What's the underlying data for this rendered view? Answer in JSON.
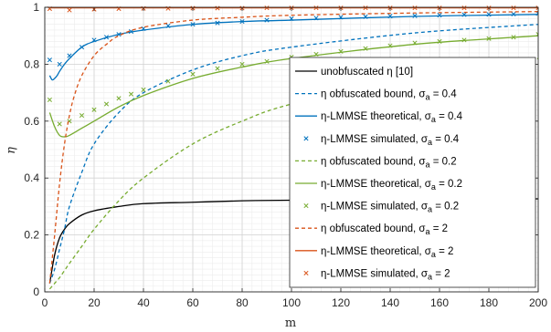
{
  "chart_data": {
    "type": "line",
    "xlabel": "m",
    "ylabel": "η",
    "xlim": [
      0,
      200
    ],
    "ylim": [
      0,
      1
    ],
    "xticks": [
      "0",
      "20",
      "40",
      "60",
      "80",
      "100",
      "120",
      "140",
      "160",
      "180",
      "200"
    ],
    "yticks": [
      "0",
      "0.2",
      "0.4",
      "0.6",
      "0.8",
      "1"
    ],
    "grid": "major and minor",
    "legend_position": "right",
    "colors": {
      "blue": "#0072BD",
      "green": "#77AC30",
      "orange": "#D95319",
      "black": "#000000"
    },
    "series": [
      {
        "name": "unobfuscated η [10]",
        "legend_label": "unobfuscated η [10]",
        "color": "#000000",
        "style": "solid",
        "x": [
          2,
          4,
          6,
          8,
          10,
          15,
          20,
          30,
          40,
          60,
          80,
          100,
          150,
          200
        ],
        "y": [
          0.03,
          0.13,
          0.19,
          0.22,
          0.24,
          0.27,
          0.285,
          0.3,
          0.31,
          0.315,
          0.32,
          0.322,
          0.325,
          0.327
        ]
      },
      {
        "name": "η obfuscated bound, σa = 0.4",
        "legend_label": "η obfuscated bound, σ",
        "legend_sub": "a",
        "legend_tail": " = 0.4",
        "color": "#0072BD",
        "style": "dashed",
        "x": [
          2,
          4,
          6,
          8,
          10,
          15,
          20,
          30,
          40,
          60,
          80,
          100,
          150,
          200
        ],
        "y": [
          0.03,
          0.08,
          0.15,
          0.22,
          0.3,
          0.42,
          0.52,
          0.63,
          0.7,
          0.78,
          0.83,
          0.86,
          0.91,
          0.94
        ]
      },
      {
        "name": "η-LMMSE theoretical, σa = 0.4",
        "legend_label": "η-LMMSE theoretical, σ",
        "legend_sub": "a",
        "legend_tail": " = 0.4",
        "color": "#0072BD",
        "style": "solid",
        "x": [
          2,
          3,
          4,
          5,
          6,
          8,
          10,
          15,
          20,
          30,
          40,
          60,
          80,
          100,
          150,
          200
        ],
        "y": [
          0.76,
          0.745,
          0.75,
          0.76,
          0.775,
          0.8,
          0.82,
          0.86,
          0.88,
          0.905,
          0.92,
          0.94,
          0.95,
          0.955,
          0.968,
          0.975
        ]
      },
      {
        "name": "η-LMMSE simulated, σa = 0.4",
        "legend_label": "η-LMMSE simulated, σ",
        "legend_sub": "a",
        "legend_tail": " = 0.4",
        "color": "#0072BD",
        "style": "marker-x",
        "x": [
          2,
          6,
          10,
          15,
          20,
          25,
          30,
          35,
          40,
          50,
          60,
          70,
          80,
          90,
          100,
          110,
          120,
          130,
          140,
          150,
          160,
          170,
          180,
          190,
          200
        ],
        "y": [
          0.815,
          0.8,
          0.83,
          0.86,
          0.885,
          0.895,
          0.905,
          0.915,
          0.925,
          0.935,
          0.94,
          0.945,
          0.95,
          0.955,
          0.96,
          0.962,
          0.965,
          0.967,
          0.969,
          0.97,
          0.972,
          0.974,
          0.975,
          0.976,
          0.978
        ]
      },
      {
        "name": "η obfuscated bound, σa = 0.2",
        "legend_label": "η obfuscated bound, σ",
        "legend_sub": "a",
        "legend_tail": " = 0.2",
        "color": "#77AC30",
        "style": "dashed",
        "x": [
          2,
          4,
          6,
          8,
          10,
          15,
          20,
          30,
          40,
          60,
          80,
          100,
          150,
          200
        ],
        "y": [
          0.01,
          0.03,
          0.05,
          0.075,
          0.1,
          0.16,
          0.22,
          0.32,
          0.4,
          0.52,
          0.6,
          0.66,
          0.76,
          0.82
        ]
      },
      {
        "name": "η-LMMSE theoretical, σa = 0.2",
        "legend_label": "η-LMMSE theoretical, σ",
        "legend_sub": "a",
        "legend_tail": " = 0.2",
        "color": "#77AC30",
        "style": "solid",
        "x": [
          2,
          4,
          6,
          8,
          10,
          15,
          20,
          30,
          40,
          60,
          80,
          100,
          150,
          200
        ],
        "y": [
          0.63,
          0.58,
          0.55,
          0.545,
          0.55,
          0.575,
          0.6,
          0.65,
          0.69,
          0.75,
          0.79,
          0.82,
          0.87,
          0.9
        ]
      },
      {
        "name": "η-LMMSE simulated, σa = 0.2",
        "legend_label": "η-LMMSE simulated, σ",
        "legend_sub": "a",
        "legend_tail": " = 0.2",
        "color": "#77AC30",
        "style": "marker-x",
        "x": [
          2,
          6,
          10,
          15,
          20,
          25,
          30,
          35,
          40,
          50,
          60,
          70,
          80,
          90,
          100,
          110,
          120,
          130,
          140,
          150,
          160,
          170,
          180,
          190,
          200
        ],
        "y": [
          0.675,
          0.59,
          0.6,
          0.62,
          0.64,
          0.66,
          0.68,
          0.695,
          0.71,
          0.74,
          0.765,
          0.785,
          0.8,
          0.81,
          0.825,
          0.835,
          0.845,
          0.855,
          0.865,
          0.875,
          0.88,
          0.885,
          0.89,
          0.895,
          0.905
        ]
      },
      {
        "name": "η obfuscated bound, σa = 2",
        "legend_label": "η obfuscated bound, σ",
        "legend_sub": "a",
        "legend_tail": " = 2",
        "color": "#D95319",
        "style": "dashed",
        "x": [
          2,
          4,
          6,
          8,
          10,
          12,
          15,
          20,
          25,
          30,
          40,
          60,
          80,
          100,
          150,
          200
        ],
        "y": [
          0.03,
          0.2,
          0.38,
          0.52,
          0.62,
          0.69,
          0.76,
          0.83,
          0.87,
          0.9,
          0.93,
          0.955,
          0.965,
          0.972,
          0.98,
          0.985
        ]
      },
      {
        "name": "η-LMMSE theoretical, σa = 2",
        "legend_label": "η-LMMSE theoretical, σ",
        "legend_sub": "a",
        "legend_tail": " = 2",
        "color": "#D95319",
        "style": "solid",
        "x": [
          2,
          50,
          100,
          150,
          200
        ],
        "y": [
          0.998,
          0.998,
          0.998,
          0.998,
          0.998
        ]
      },
      {
        "name": "η-LMMSE simulated, σa = 2",
        "legend_label": "η-LMMSE simulated, σ",
        "legend_sub": "a",
        "legend_tail": " = 2",
        "color": "#D95319",
        "style": "marker-x",
        "x": [
          2,
          10,
          20,
          30,
          40,
          50,
          60,
          70,
          80,
          90,
          100,
          110,
          120,
          130,
          140,
          150,
          160,
          170,
          180,
          190,
          200
        ],
        "y": [
          0.995,
          0.99,
          0.993,
          0.995,
          0.996,
          0.996,
          0.997,
          0.997,
          0.997,
          0.998,
          0.998,
          0.998,
          0.998,
          0.998,
          0.998,
          0.998,
          0.998,
          0.998,
          0.998,
          0.998,
          0.998
        ]
      }
    ]
  }
}
